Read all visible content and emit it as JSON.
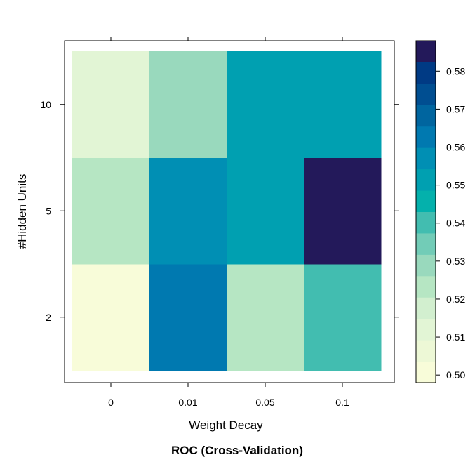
{
  "chart_data": {
    "type": "heatmap",
    "title": "ROC (Cross-Validation)",
    "xlabel": "Weight Decay",
    "ylabel": "#Hidden Units",
    "x_categories": [
      "0",
      "0.01",
      "0.05",
      "0.1"
    ],
    "y_categories": [
      "2",
      "5",
      "10"
    ],
    "cells": [
      {
        "x": "0",
        "y": "2",
        "value": 0.5
      },
      {
        "x": "0.01",
        "y": "2",
        "value": 0.562
      },
      {
        "x": "0.05",
        "y": "2",
        "value": 0.522
      },
      {
        "x": "0.1",
        "y": "2",
        "value": 0.539
      },
      {
        "x": "0",
        "y": "5",
        "value": 0.521
      },
      {
        "x": "0.01",
        "y": "5",
        "value": 0.557
      },
      {
        "x": "0.05",
        "y": "5",
        "value": 0.553
      },
      {
        "x": "0.1",
        "y": "5",
        "value": 0.587
      },
      {
        "x": "0",
        "y": "10",
        "value": 0.512
      },
      {
        "x": "0.01",
        "y": "10",
        "value": 0.529
      },
      {
        "x": "0.05",
        "y": "10",
        "value": 0.553
      },
      {
        "x": "0.1",
        "y": "10",
        "value": 0.549
      }
    ],
    "colorbar": {
      "range": [
        0.498,
        0.588
      ],
      "tick_values": [
        0.5,
        0.51,
        0.52,
        0.53,
        0.54,
        0.55,
        0.56,
        0.57,
        0.58
      ],
      "tick_labels": [
        "0.50",
        "0.51",
        "0.52",
        "0.53",
        "0.54",
        "0.55",
        "0.56",
        "0.57",
        "0.58"
      ],
      "colors": [
        "#f8fcd9",
        "#edf8d6",
        "#e2f5d5",
        "#d2efcf",
        "#b6e6c3",
        "#99d9bd",
        "#72ccb7",
        "#42bdb0",
        "#04b1ac",
        "#00a0b1",
        "#008fb4",
        "#0079b0",
        "#00659f",
        "#004e91",
        "#003a84",
        "#23195a"
      ]
    },
    "grid": false,
    "legend_position": "right"
  }
}
